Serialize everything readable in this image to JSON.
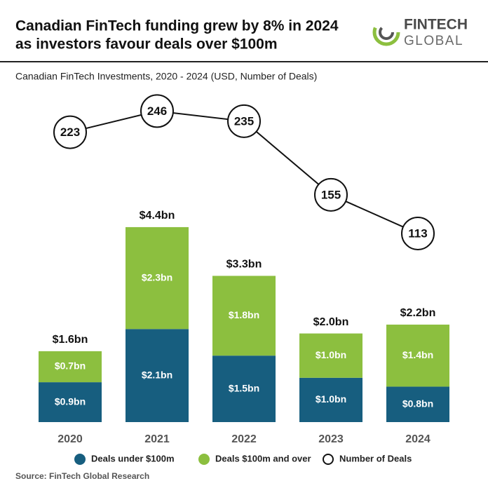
{
  "logo": {
    "line1": "FINTECH",
    "line2": "GLOBAL"
  },
  "chart_data": {
    "type": "bar",
    "stacked": true,
    "title": [
      "Canadian FinTech funding grew by 8% in 2024",
      "as investors favour deals over $100m"
    ],
    "subtitle": "Canadian FinTech Investments, 2020 - 2024 (USD, Number of Deals)",
    "source": "Source: FinTech Global Research",
    "categories": [
      "2020",
      "2021",
      "2022",
      "2023",
      "2024"
    ],
    "series": [
      {
        "name": "Deals under $100m",
        "color": "#175e7f",
        "values": [
          0.9,
          2.1,
          1.5,
          1.0,
          0.8
        ],
        "value_labels": [
          "$0.9bn",
          "$2.1bn",
          "$1.5bn",
          "$1.0bn",
          "$0.8bn"
        ]
      },
      {
        "name": "Deals $100m and over",
        "color": "#8cbf3f",
        "values": [
          0.7,
          2.3,
          1.8,
          1.0,
          1.4
        ],
        "value_labels": [
          "$0.7bn",
          "$2.3bn",
          "$1.8bn",
          "$1.0bn",
          "$1.4bn"
        ]
      },
      {
        "name": "Number of Deals",
        "type": "line",
        "axis": "y2",
        "color": "#111111",
        "values": [
          223,
          246,
          235,
          155,
          113
        ]
      }
    ],
    "totals": {
      "values": [
        1.6,
        4.4,
        3.3,
        2.0,
        2.2
      ],
      "value_labels": [
        "$1.6bn",
        "$4.4bn",
        "$3.3bn",
        "$2.0bn",
        "$2.2bn"
      ]
    },
    "ylim": [
      0,
      5
    ],
    "y2lim": [
      100,
      260
    ],
    "legend": "bottom"
  }
}
